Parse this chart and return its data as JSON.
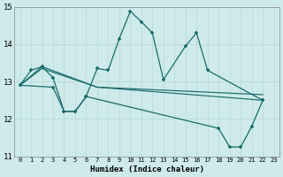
{
  "xlabel": "Humidex (Indice chaleur)",
  "background_color": "#ceeaea",
  "line_color": "#1a6b6b",
  "grid_color": "#b8d8d8",
  "xlim": [
    -0.5,
    23.5
  ],
  "ylim": [
    11,
    15
  ],
  "xticks": [
    0,
    1,
    2,
    3,
    4,
    5,
    6,
    7,
    8,
    9,
    10,
    11,
    12,
    13,
    14,
    15,
    16,
    17,
    18,
    19,
    20,
    21,
    22,
    23
  ],
  "yticks": [
    11,
    12,
    13,
    14,
    15
  ],
  "series1_x": [
    0,
    1,
    2,
    3,
    4,
    5,
    6,
    7,
    8,
    9,
    10,
    11,
    12,
    13,
    15,
    16,
    17,
    22
  ],
  "series1_y": [
    12.9,
    13.3,
    13.4,
    13.1,
    12.2,
    12.2,
    12.6,
    13.35,
    13.3,
    14.15,
    14.88,
    14.6,
    14.3,
    13.05,
    13.95,
    14.3,
    13.3,
    12.5
  ],
  "series2_x": [
    0,
    2,
    7,
    22
  ],
  "series2_y": [
    12.9,
    13.4,
    12.85,
    12.65
  ],
  "series3_x": [
    0,
    2,
    7,
    22
  ],
  "series3_y": [
    12.9,
    13.35,
    12.85,
    12.5
  ],
  "series4_x": [
    0,
    3,
    4,
    5,
    6,
    18,
    19,
    20,
    21,
    22
  ],
  "series4_y": [
    12.9,
    12.85,
    12.2,
    12.2,
    12.6,
    11.75,
    11.25,
    11.25,
    11.8,
    12.5
  ]
}
